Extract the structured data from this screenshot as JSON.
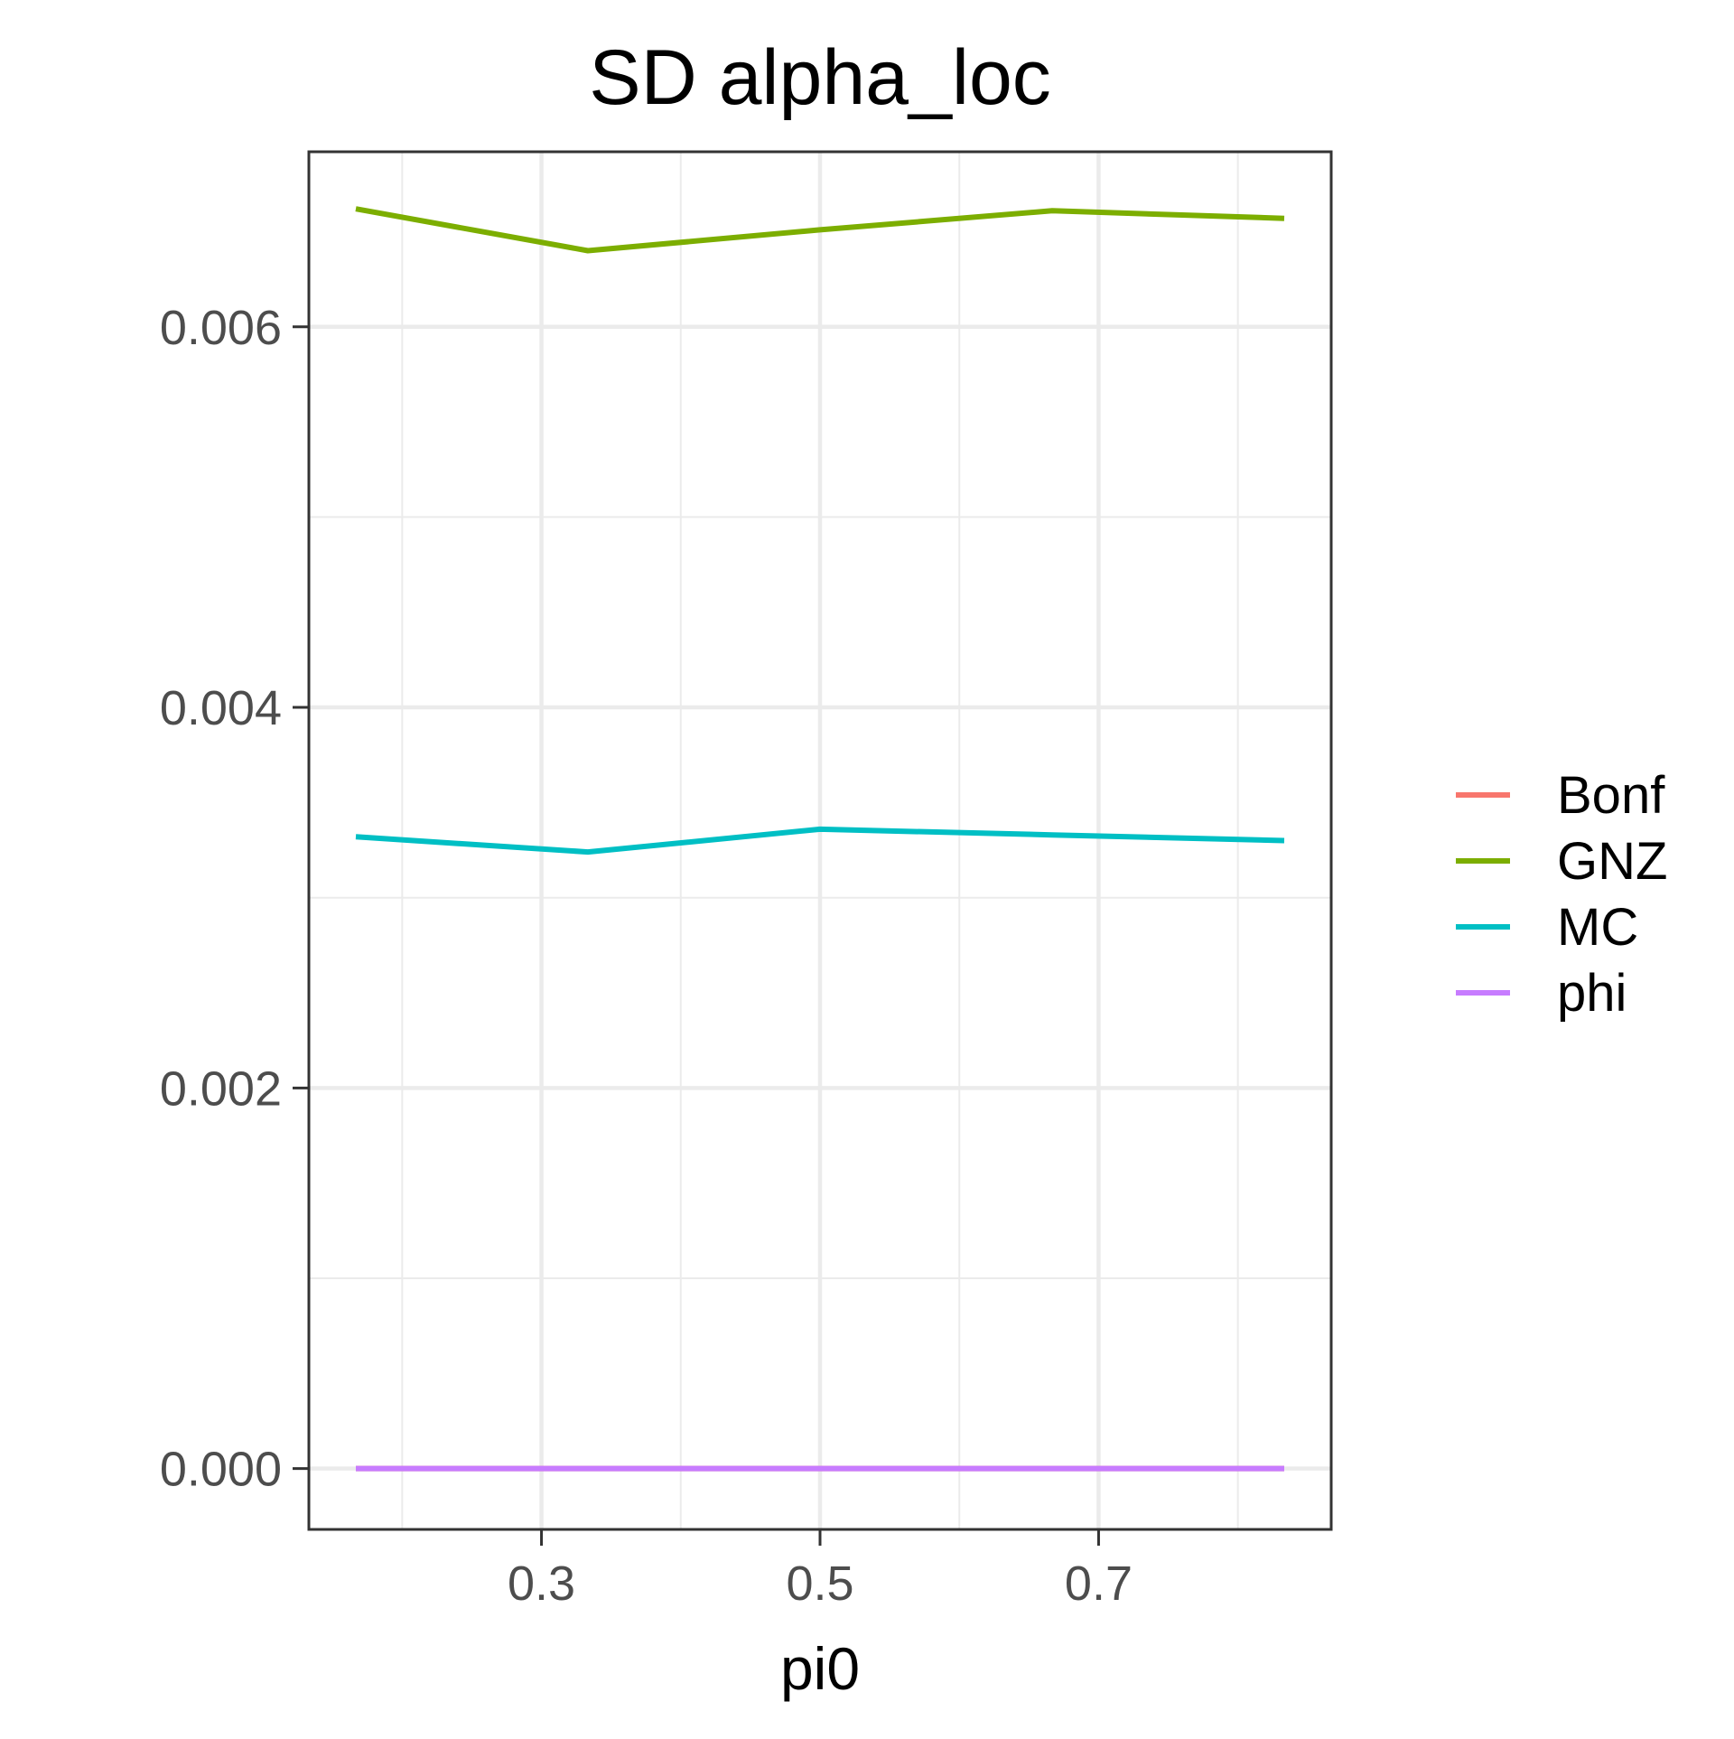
{
  "chart_data": {
    "type": "line",
    "title": "SD alpha_loc",
    "xlabel": "pi0",
    "ylabel": "",
    "xlim": [
      0.133,
      0.867
    ],
    "ylim": [
      -0.00032,
      0.00692
    ],
    "x_ticks": [
      0.3,
      0.5,
      0.7
    ],
    "x_tick_labels": [
      "0.3",
      "0.5",
      "0.7"
    ],
    "x_minor_ticks": [
      0.2,
      0.4,
      0.6,
      0.8
    ],
    "y_ticks": [
      0.0,
      0.002,
      0.004,
      0.006
    ],
    "y_tick_labels": [
      "0.000",
      "0.002",
      "0.004",
      "0.006"
    ],
    "y_minor_ticks": [
      0.001,
      0.003,
      0.005
    ],
    "grid": true,
    "legend_position": "right",
    "x": [
      0.1667,
      0.3333,
      0.5,
      0.6667,
      0.8333
    ],
    "series": [
      {
        "name": "Bonf",
        "color": "#F8766D",
        "values": [
          0.0,
          0.0,
          0.0,
          0.0,
          0.0
        ]
      },
      {
        "name": "GNZ",
        "color": "#7CAE00",
        "values": [
          0.00662,
          0.0064,
          0.00651,
          0.00661,
          0.00657
        ]
      },
      {
        "name": "MC",
        "color": "#00BFC4",
        "values": [
          0.00332,
          0.00324,
          0.00336,
          0.00333,
          0.0033
        ]
      },
      {
        "name": "phi",
        "color": "#C77CFF",
        "values": [
          0.0,
          0.0,
          0.0,
          0.0,
          0.0
        ]
      }
    ]
  }
}
